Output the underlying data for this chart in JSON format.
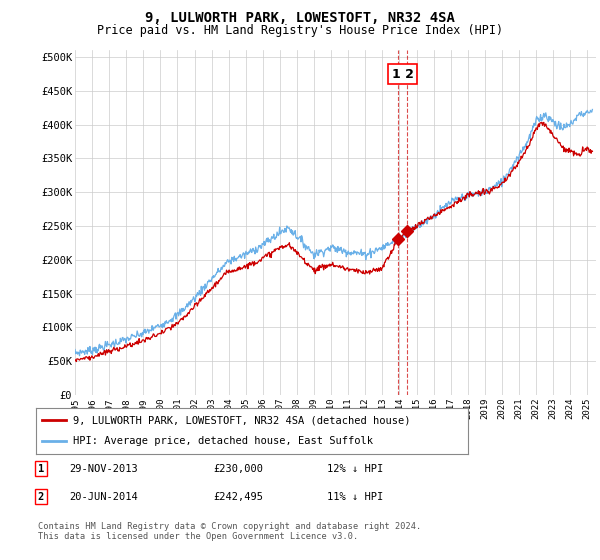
{
  "title": "9, LULWORTH PARK, LOWESTOFT, NR32 4SA",
  "subtitle": "Price paid vs. HM Land Registry's House Price Index (HPI)",
  "ylabel_ticks": [
    "£0",
    "£50K",
    "£100K",
    "£150K",
    "£200K",
    "£250K",
    "£300K",
    "£350K",
    "£400K",
    "£450K",
    "£500K"
  ],
  "ytick_values": [
    0,
    50000,
    100000,
    150000,
    200000,
    250000,
    300000,
    350000,
    400000,
    450000,
    500000
  ],
  "ylim": [
    0,
    510000
  ],
  "xlim_start": 1995.0,
  "xlim_end": 2025.5,
  "xtick_years": [
    1995,
    1996,
    1997,
    1998,
    1999,
    2000,
    2001,
    2002,
    2003,
    2004,
    2005,
    2006,
    2007,
    2008,
    2009,
    2010,
    2011,
    2012,
    2013,
    2014,
    2015,
    2016,
    2017,
    2018,
    2019,
    2020,
    2021,
    2022,
    2023,
    2024,
    2025
  ],
  "hpi_color": "#6ab0e8",
  "price_color": "#cc0000",
  "vline_color": "#cc0000",
  "marker_color": "#cc0000",
  "legend_label1": "9, LULWORTH PARK, LOWESTOFT, NR32 4SA (detached house)",
  "legend_label2": "HPI: Average price, detached house, East Suffolk",
  "transaction1_date": 2013.91,
  "transaction1_price": 230000,
  "transaction2_date": 2014.47,
  "transaction2_price": 242495,
  "footer": "Contains HM Land Registry data © Crown copyright and database right 2024.\nThis data is licensed under the Open Government Licence v3.0.",
  "background_color": "#ffffff",
  "grid_color": "#cccccc",
  "hpi_anchors": [
    [
      1995.0,
      62000
    ],
    [
      1996.0,
      66000
    ],
    [
      1997.0,
      74000
    ],
    [
      1998.0,
      82000
    ],
    [
      1999.0,
      91000
    ],
    [
      2000.0,
      103000
    ],
    [
      2001.0,
      118000
    ],
    [
      2002.0,
      143000
    ],
    [
      2003.0,
      172000
    ],
    [
      2004.0,
      198000
    ],
    [
      2005.0,
      208000
    ],
    [
      2006.0,
      222000
    ],
    [
      2007.0,
      240000
    ],
    [
      2007.5,
      248000
    ],
    [
      2008.0,
      235000
    ],
    [
      2009.0,
      208000
    ],
    [
      2010.0,
      218000
    ],
    [
      2011.0,
      212000
    ],
    [
      2012.0,
      208000
    ],
    [
      2013.0,
      218000
    ],
    [
      2013.5,
      225000
    ],
    [
      2014.0,
      232000
    ],
    [
      2015.0,
      248000
    ],
    [
      2016.0,
      265000
    ],
    [
      2017.0,
      285000
    ],
    [
      2018.0,
      295000
    ],
    [
      2019.0,
      300000
    ],
    [
      2020.0,
      315000
    ],
    [
      2021.0,
      355000
    ],
    [
      2021.5,
      375000
    ],
    [
      2022.0,
      405000
    ],
    [
      2022.5,
      415000
    ],
    [
      2023.0,
      405000
    ],
    [
      2023.5,
      395000
    ],
    [
      2024.0,
      400000
    ],
    [
      2024.5,
      415000
    ],
    [
      2025.3,
      420000
    ]
  ],
  "price_anchors": [
    [
      1995.0,
      52000
    ],
    [
      1996.0,
      56000
    ],
    [
      1997.0,
      64000
    ],
    [
      1998.0,
      72000
    ],
    [
      1999.0,
      80000
    ],
    [
      2000.0,
      91000
    ],
    [
      2001.0,
      105000
    ],
    [
      2002.0,
      130000
    ],
    [
      2003.0,
      158000
    ],
    [
      2004.0,
      183000
    ],
    [
      2005.0,
      190000
    ],
    [
      2006.0,
      202000
    ],
    [
      2007.0,
      218000
    ],
    [
      2007.5,
      222000
    ],
    [
      2008.0,
      210000
    ],
    [
      2009.0,
      185000
    ],
    [
      2010.0,
      193000
    ],
    [
      2011.0,
      186000
    ],
    [
      2012.0,
      180000
    ],
    [
      2013.0,
      188000
    ],
    [
      2013.91,
      230000
    ],
    [
      2014.0,
      232000
    ],
    [
      2014.47,
      242495
    ],
    [
      2015.0,
      250000
    ],
    [
      2016.0,
      265000
    ],
    [
      2017.0,
      280000
    ],
    [
      2018.0,
      295000
    ],
    [
      2019.0,
      300000
    ],
    [
      2020.0,
      310000
    ],
    [
      2021.0,
      345000
    ],
    [
      2021.5,
      365000
    ],
    [
      2022.0,
      395000
    ],
    [
      2022.3,
      405000
    ],
    [
      2022.7,
      395000
    ],
    [
      2023.0,
      385000
    ],
    [
      2023.5,
      368000
    ],
    [
      2024.0,
      360000
    ],
    [
      2024.5,
      355000
    ],
    [
      2025.0,
      365000
    ],
    [
      2025.3,
      360000
    ]
  ]
}
